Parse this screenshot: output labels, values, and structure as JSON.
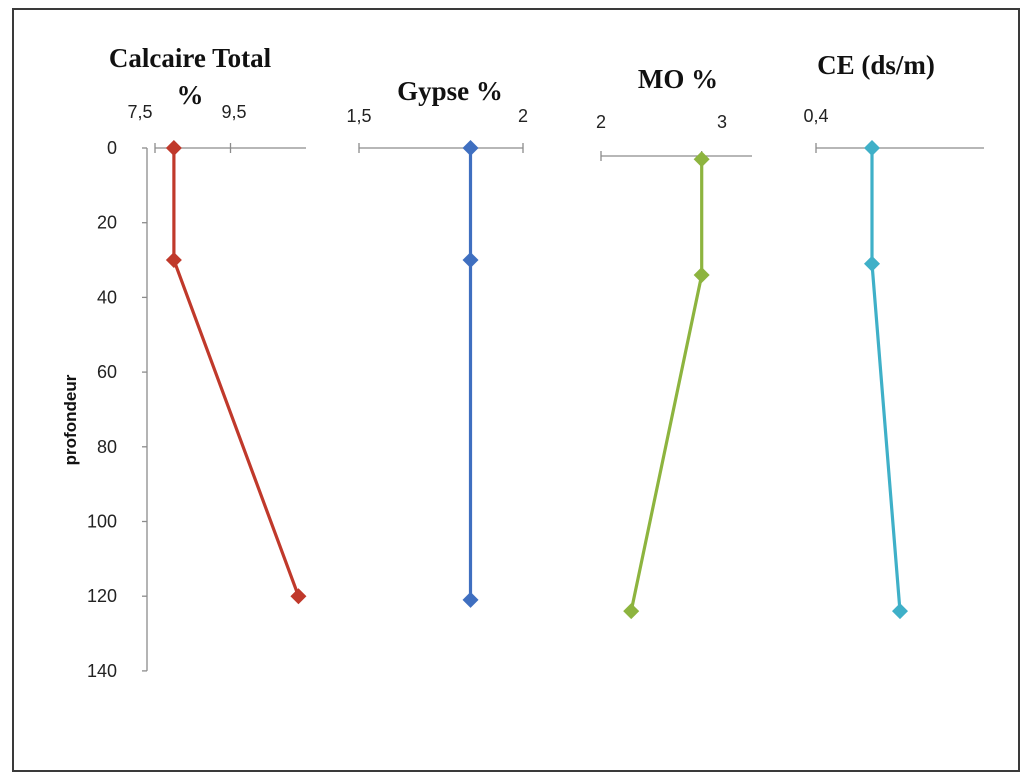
{
  "chart_data": {
    "type": "line",
    "ylabel": "profondeur",
    "y_axis": {
      "ticks": [
        0,
        20,
        40,
        60,
        80,
        100,
        120,
        140
      ],
      "range": [
        0,
        140
      ],
      "inverted": true
    },
    "grid": false,
    "panels": [
      {
        "name": "calcaire",
        "title_lines": [
          "Calcaire Total",
          "%"
        ],
        "x_ticks": [
          "7,5",
          "9,5"
        ],
        "x_range": [
          7.5,
          11.5
        ],
        "color": "#c0392b",
        "points": [
          {
            "x": 8.0,
            "y": 0
          },
          {
            "x": 8.0,
            "y": 30
          },
          {
            "x": 11.3,
            "y": 120
          }
        ]
      },
      {
        "name": "gypse",
        "title_lines": [
          "Gypse %"
        ],
        "x_ticks": [
          "1,5",
          "2"
        ],
        "x_range": [
          1.5,
          2.0
        ],
        "color": "#3f6fc0",
        "points": [
          {
            "x": 1.84,
            "y": 0
          },
          {
            "x": 1.84,
            "y": 30
          },
          {
            "x": 1.84,
            "y": 121
          }
        ]
      },
      {
        "name": "mo",
        "title_lines": [
          "MO %"
        ],
        "x_ticks": [
          "2",
          "3"
        ],
        "x_range": [
          2.0,
          3.5
        ],
        "color": "#8db43f",
        "points": [
          {
            "x": 3.0,
            "y": 3
          },
          {
            "x": 3.0,
            "y": 34
          },
          {
            "x": 2.3,
            "y": 124
          }
        ]
      },
      {
        "name": "ce",
        "title_lines": [
          "CE (ds/m)"
        ],
        "x_ticks": [
          "0,4"
        ],
        "x_range": [
          0.4,
          1.0
        ],
        "color": "#3fb0c8",
        "points": [
          {
            "x": 0.6,
            "y": 0
          },
          {
            "x": 0.6,
            "y": 31
          },
          {
            "x": 0.7,
            "y": 124
          }
        ]
      }
    ]
  }
}
